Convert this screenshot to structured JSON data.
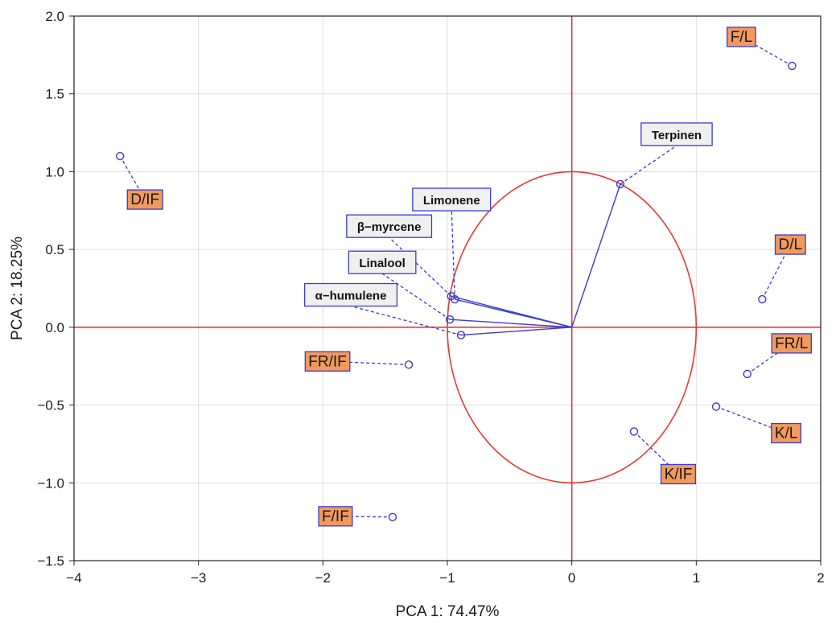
{
  "chart_data": {
    "type": "scatter",
    "xlabel": "PCA 1: 74.47%",
    "ylabel": "PCA 2: 18.25%",
    "xlim": [
      -4,
      2
    ],
    "ylim": [
      -1.5,
      2.0
    ],
    "x_ticks": [
      -4,
      -3,
      -2,
      -1,
      0,
      1,
      2
    ],
    "y_ticks": [
      -1.5,
      -1.0,
      -0.5,
      0.0,
      0.5,
      1.0,
      1.5,
      2.0
    ],
    "x_tick_labels": [
      "−4",
      "−3",
      "−2",
      "−1",
      "0",
      "1",
      "2"
    ],
    "y_tick_labels": [
      "−1.5",
      "−1.0",
      "−0.5",
      "0.0",
      "0.5",
      "1.0",
      "1.5",
      "2.0"
    ],
    "grid": true,
    "unit_circle_radius": 1,
    "colors": {
      "axis_lines": "#e53935",
      "circle": "#e53935",
      "vectors": "#3a3ad6",
      "points": "#3a3ad6",
      "obs_label_fill": "#f29a5c",
      "obs_label_border": "#3a3ad6",
      "var_label_fill": "#f0f0f0",
      "var_label_border": "#3a3ad6",
      "grid": "#dddddd"
    },
    "observations": [
      {
        "label": "F/L",
        "x": 1.77,
        "y": 1.68
      },
      {
        "label": "D/IF",
        "x": -3.63,
        "y": 1.1
      },
      {
        "label": "D/L",
        "x": 1.53,
        "y": 0.18
      },
      {
        "label": "FR/L",
        "x": 1.41,
        "y": -0.3
      },
      {
        "label": "FR/IF",
        "x": -1.31,
        "y": -0.24
      },
      {
        "label": "K/L",
        "x": 1.16,
        "y": -0.51
      },
      {
        "label": "K/IF",
        "x": 0.5,
        "y": -0.67
      },
      {
        "label": "F/IF",
        "x": -1.44,
        "y": -1.22
      }
    ],
    "variables": [
      {
        "label": "Terpinen",
        "x": 0.39,
        "y": 0.92
      },
      {
        "label": "Limonene",
        "x": -0.94,
        "y": 0.18
      },
      {
        "label": "β−myrcene",
        "x": -0.97,
        "y": 0.2
      },
      {
        "label": "Linalool",
        "x": -0.98,
        "y": 0.05
      },
      {
        "label": "α−humulene",
        "x": -0.89,
        "y": -0.05
      }
    ]
  }
}
